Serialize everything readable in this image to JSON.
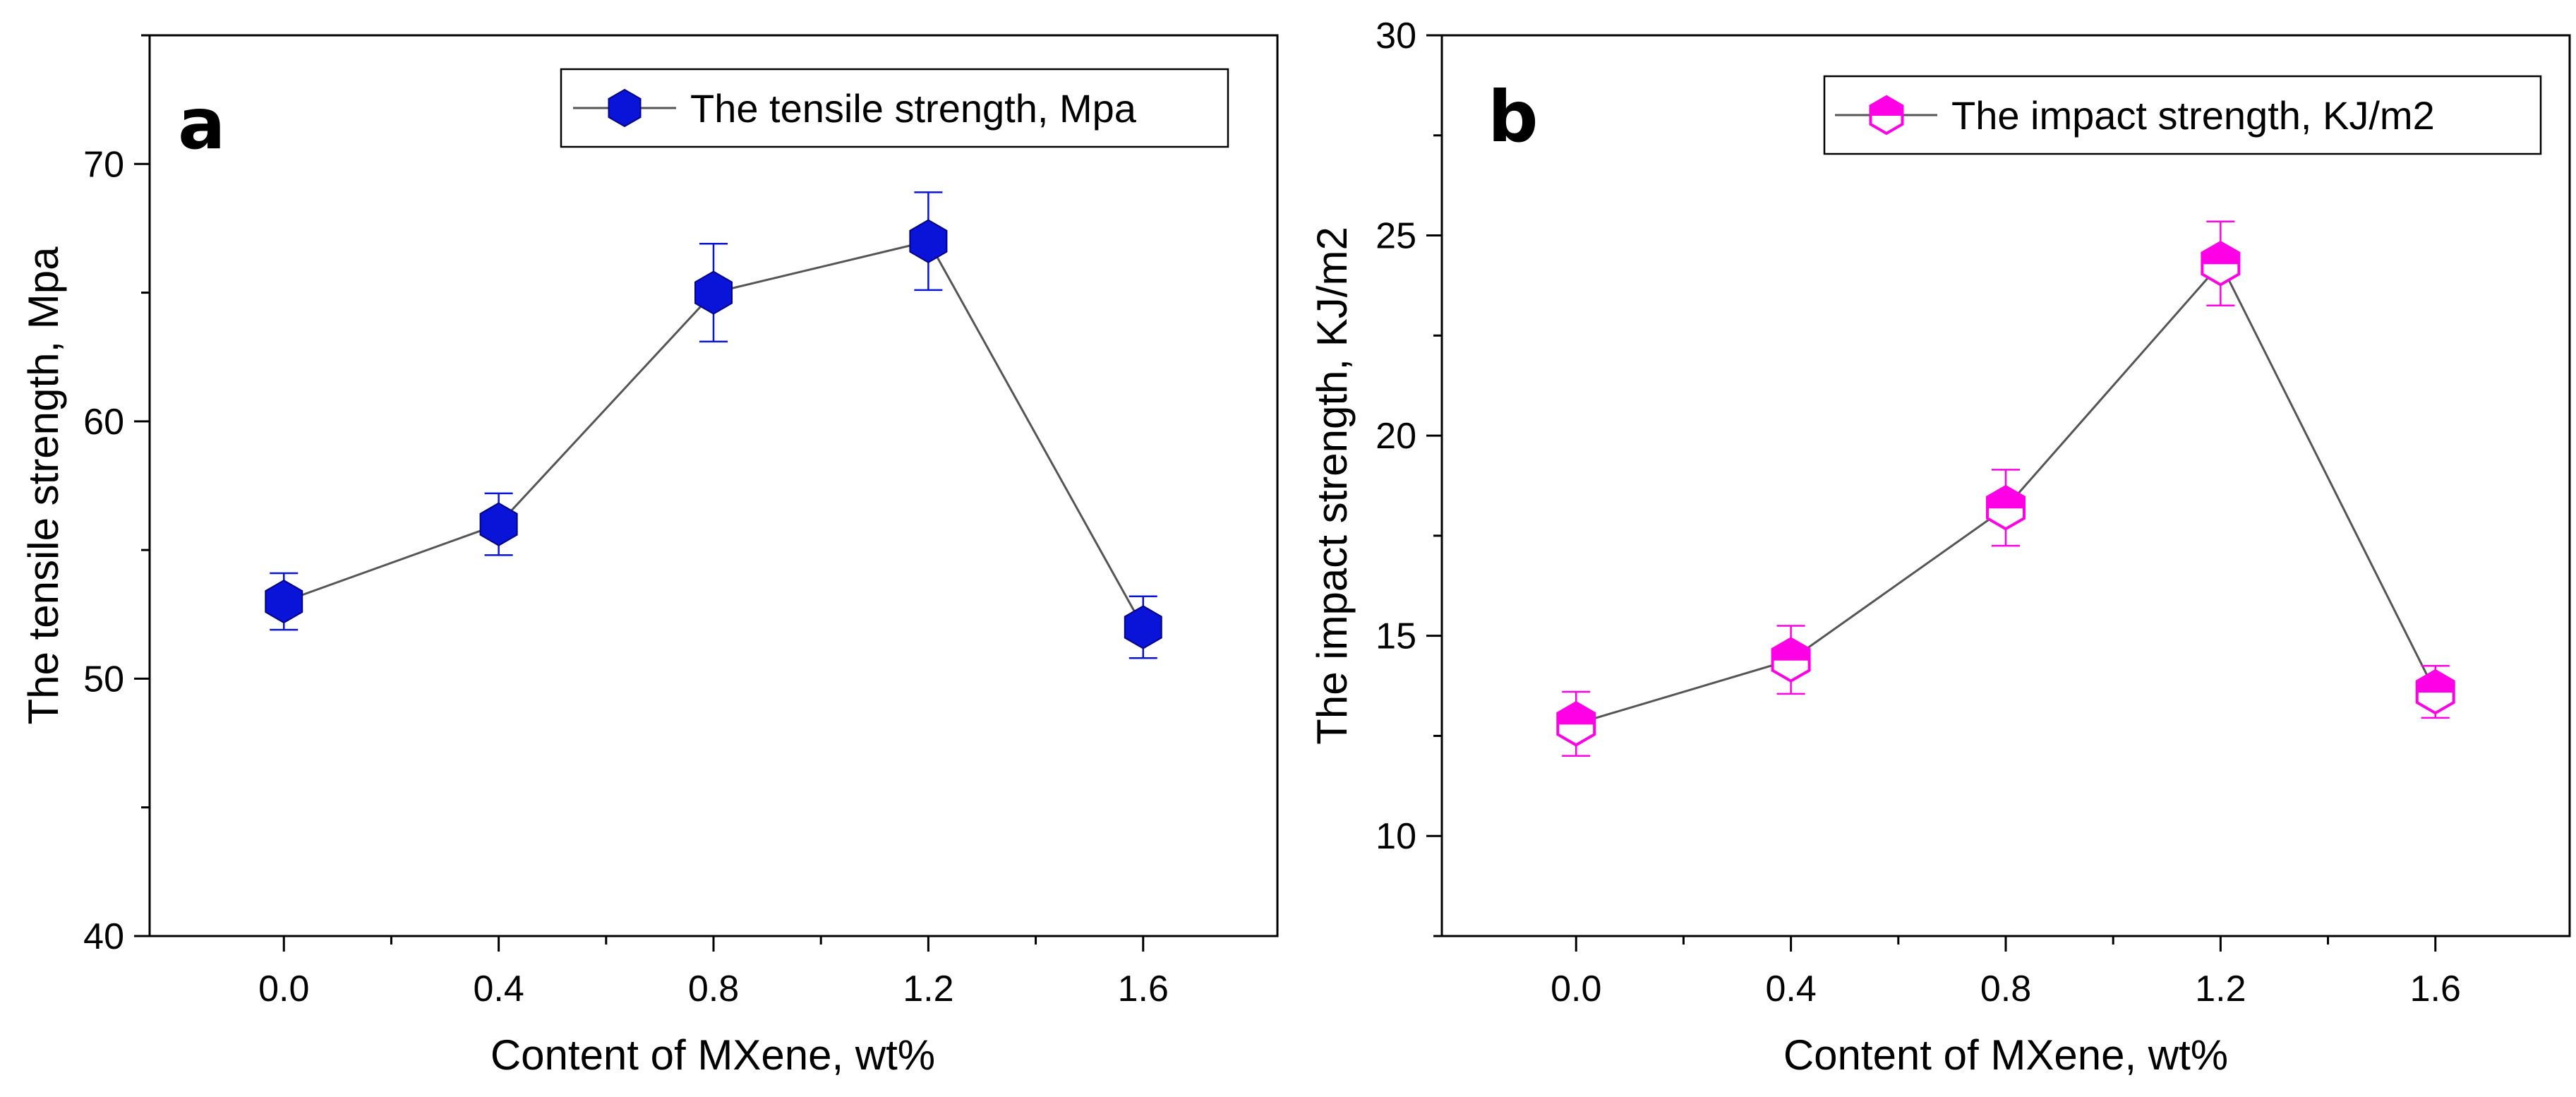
{
  "chart_data": [
    {
      "type": "line",
      "panel_label": "a",
      "xlabel": "Content of  MXene, wt%",
      "ylabel": "The tensile strength, Mpa",
      "x_tick_labels": [
        "0.0",
        "0.4",
        "0.8",
        "1.2",
        "1.6"
      ],
      "y_tick_labels": [
        "40",
        "50",
        "60",
        "70"
      ],
      "xlim": [
        -0.25,
        1.85
      ],
      "ylim": [
        40,
        75
      ],
      "grid": false,
      "legend_position": "top-right",
      "marker": "filled-hexagon",
      "series": [
        {
          "name": "The tensile strength, Mpa",
          "color": "#0a14d8",
          "x": [
            0.0,
            0.4,
            0.8,
            1.2,
            1.6
          ],
          "y": [
            53.0,
            56.0,
            65.0,
            67.0,
            52.0
          ],
          "error": [
            1.1,
            1.2,
            1.9,
            1.9,
            1.2
          ]
        }
      ]
    },
    {
      "type": "line",
      "panel_label": "b",
      "xlabel": "Content of  MXene, wt%",
      "ylabel": "The impact strength, KJ/m2",
      "x_tick_labels": [
        "0.0",
        "0.4",
        "0.8",
        "1.2",
        "1.6"
      ],
      "y_tick_labels": [
        "10",
        "15",
        "20",
        "25",
        "30"
      ],
      "xlim": [
        -0.25,
        1.85
      ],
      "ylim": [
        7.5,
        30
      ],
      "grid": false,
      "legend_position": "top-right",
      "marker": "half-filled-hexagon",
      "series": [
        {
          "name": "The impact strength, KJ/m2",
          "color": "#ff00e6",
          "x": [
            0.0,
            0.4,
            0.8,
            1.2,
            1.6
          ],
          "y": [
            12.8,
            14.4,
            18.2,
            24.3,
            13.6
          ],
          "error": [
            0.8,
            0.85,
            0.95,
            1.05,
            0.65
          ]
        }
      ]
    }
  ]
}
